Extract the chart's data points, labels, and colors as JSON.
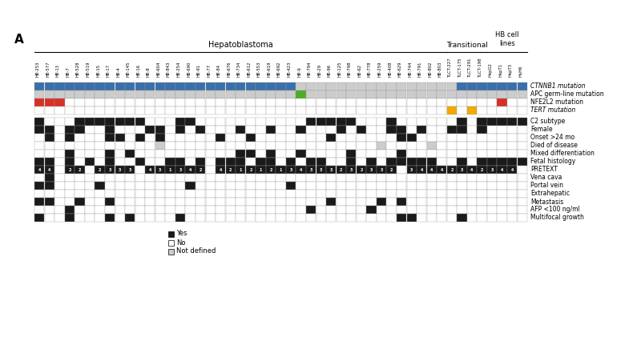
{
  "samples": [
    "HB-253",
    "HB-577",
    "HB-13",
    "HB-7",
    "HB-528",
    "HB-519",
    "HB-15",
    "HB-17",
    "HB-4",
    "HB-145",
    "HB-16",
    "HB-8",
    "HB-604",
    "HB-843",
    "HB-254",
    "HB-690",
    "HB-91",
    "HB-77",
    "HB-84",
    "HB-676",
    "HB-734",
    "HB-612",
    "HB-553",
    "HB-619",
    "HB-692",
    "HB-423",
    "HB-9",
    "HB-794",
    "HB-29",
    "HB-96",
    "HB-125",
    "HB-798",
    "HB-62",
    "HB-778",
    "HB-259",
    "HB-408",
    "HB-629",
    "HB-744",
    "HB-791",
    "HB-802",
    "HB-803",
    "TLCT-227",
    "TLCT-175",
    "TLCT-291",
    "TLCT-198",
    "HepG2",
    "HepT1",
    "HepT3",
    "HuH6"
  ],
  "n_hb": 41,
  "n_trans": 4,
  "n_hbcl": 4,
  "CTNNB1": [
    1,
    1,
    1,
    1,
    1,
    1,
    1,
    1,
    1,
    1,
    1,
    1,
    1,
    1,
    1,
    1,
    1,
    1,
    1,
    1,
    1,
    1,
    1,
    1,
    1,
    1,
    0,
    0,
    0,
    0,
    0,
    0,
    0,
    0,
    0,
    0,
    0,
    0,
    0,
    0,
    0,
    0,
    1,
    1,
    1,
    1,
    1,
    1,
    1
  ],
  "APC": [
    0,
    0,
    0,
    0,
    0,
    2,
    2,
    0,
    0,
    0,
    0,
    0,
    2,
    0,
    0,
    0,
    0,
    0,
    0,
    0,
    0,
    0,
    0,
    0,
    0,
    0,
    3,
    0,
    0,
    0,
    0,
    0,
    0,
    0,
    0,
    0,
    0,
    0,
    0,
    0,
    0,
    0,
    0,
    0,
    0,
    0,
    0,
    0,
    0
  ],
  "NFE2L2": [
    1,
    1,
    1,
    0,
    0,
    0,
    0,
    0,
    0,
    0,
    0,
    0,
    0,
    0,
    0,
    0,
    0,
    0,
    0,
    0,
    0,
    0,
    0,
    0,
    0,
    0,
    0,
    0,
    0,
    0,
    0,
    0,
    0,
    0,
    0,
    0,
    0,
    0,
    0,
    0,
    0,
    0,
    0,
    0,
    0,
    0,
    1,
    0,
    0
  ],
  "TERT": [
    0,
    0,
    0,
    0,
    0,
    0,
    0,
    0,
    0,
    0,
    0,
    0,
    0,
    0,
    0,
    0,
    0,
    0,
    0,
    0,
    0,
    0,
    0,
    0,
    0,
    0,
    0,
    0,
    0,
    0,
    0,
    0,
    0,
    0,
    0,
    0,
    0,
    0,
    0,
    0,
    0,
    1,
    0,
    1,
    0,
    0,
    0,
    0,
    0
  ],
  "C2": [
    1,
    0,
    0,
    0,
    1,
    1,
    1,
    1,
    1,
    1,
    1,
    0,
    0,
    0,
    1,
    1,
    0,
    0,
    0,
    0,
    0,
    0,
    0,
    0,
    0,
    0,
    0,
    1,
    1,
    1,
    1,
    1,
    0,
    0,
    0,
    1,
    0,
    0,
    0,
    0,
    0,
    0,
    1,
    0,
    1,
    1,
    1,
    1,
    1
  ],
  "Female": [
    1,
    1,
    0,
    1,
    1,
    0,
    0,
    1,
    0,
    0,
    0,
    1,
    1,
    0,
    1,
    0,
    1,
    0,
    0,
    0,
    1,
    0,
    0,
    1,
    0,
    0,
    1,
    0,
    0,
    0,
    1,
    0,
    1,
    0,
    0,
    1,
    1,
    0,
    1,
    0,
    0,
    1,
    1,
    0,
    1,
    0,
    0,
    0,
    0
  ],
  "Onset24": [
    0,
    1,
    0,
    1,
    0,
    0,
    0,
    1,
    1,
    0,
    1,
    0,
    1,
    0,
    0,
    0,
    0,
    0,
    1,
    0,
    0,
    1,
    0,
    0,
    0,
    0,
    0,
    0,
    0,
    1,
    0,
    0,
    0,
    0,
    0,
    0,
    1,
    1,
    0,
    0,
    0,
    0,
    0,
    0,
    0,
    0,
    0,
    0,
    0
  ],
  "Died": [
    0,
    0,
    0,
    0,
    0,
    0,
    0,
    0,
    0,
    0,
    0,
    0,
    9,
    0,
    0,
    0,
    0,
    0,
    0,
    0,
    0,
    0,
    0,
    0,
    0,
    0,
    0,
    0,
    0,
    0,
    0,
    0,
    0,
    0,
    9,
    0,
    0,
    0,
    0,
    9,
    0,
    0,
    0,
    0,
    0,
    0,
    0,
    0,
    0
  ],
  "MixDiff": [
    0,
    0,
    0,
    1,
    0,
    0,
    0,
    1,
    0,
    1,
    0,
    0,
    0,
    0,
    0,
    0,
    0,
    0,
    0,
    0,
    1,
    1,
    0,
    1,
    0,
    0,
    1,
    0,
    0,
    0,
    0,
    1,
    0,
    0,
    0,
    0,
    1,
    0,
    0,
    0,
    0,
    0,
    0,
    0,
    0,
    0,
    0,
    0,
    0
  ],
  "FetalH": [
    1,
    1,
    0,
    1,
    0,
    1,
    0,
    1,
    0,
    0,
    1,
    0,
    0,
    1,
    1,
    0,
    1,
    0,
    1,
    1,
    1,
    0,
    1,
    1,
    0,
    1,
    0,
    1,
    1,
    0,
    0,
    1,
    0,
    1,
    0,
    1,
    1,
    1,
    1,
    1,
    0,
    0,
    1,
    0,
    1,
    1,
    1,
    1,
    1
  ],
  "PRETEXT": [
    4,
    4,
    0,
    2,
    2,
    0,
    2,
    3,
    3,
    3,
    0,
    4,
    3,
    1,
    3,
    4,
    2,
    0,
    4,
    2,
    1,
    2,
    1,
    2,
    1,
    3,
    4,
    3,
    3,
    3,
    2,
    3,
    2,
    3,
    3,
    2,
    0,
    3,
    4,
    4,
    4,
    2,
    3,
    4,
    2,
    3,
    4,
    4,
    0
  ],
  "VenaCava": [
    0,
    1,
    0,
    0,
    0,
    0,
    0,
    0,
    0,
    0,
    0,
    0,
    0,
    0,
    0,
    0,
    0,
    0,
    0,
    0,
    0,
    0,
    0,
    0,
    0,
    0,
    0,
    0,
    0,
    0,
    0,
    0,
    0,
    0,
    0,
    0,
    0,
    0,
    0,
    0,
    0,
    0,
    0,
    0,
    0,
    0,
    0,
    0,
    0
  ],
  "Portal": [
    1,
    1,
    0,
    0,
    0,
    0,
    1,
    0,
    0,
    0,
    0,
    0,
    0,
    0,
    0,
    1,
    0,
    0,
    0,
    0,
    0,
    0,
    0,
    0,
    0,
    1,
    0,
    0,
    0,
    0,
    0,
    0,
    0,
    0,
    0,
    0,
    0,
    0,
    0,
    0,
    0,
    0,
    0,
    0,
    0,
    0,
    0,
    0,
    0
  ],
  "Extrahep": [
    0,
    0,
    0,
    0,
    0,
    0,
    0,
    0,
    0,
    0,
    0,
    0,
    0,
    0,
    0,
    0,
    0,
    0,
    0,
    0,
    0,
    0,
    0,
    0,
    0,
    0,
    0,
    0,
    0,
    0,
    0,
    0,
    0,
    0,
    0,
    0,
    0,
    0,
    0,
    0,
    0,
    0,
    0,
    0,
    0,
    0,
    0,
    0,
    0
  ],
  "Metastas": [
    1,
    1,
    0,
    0,
    1,
    0,
    0,
    1,
    0,
    0,
    0,
    0,
    0,
    0,
    0,
    0,
    0,
    0,
    0,
    0,
    0,
    0,
    0,
    0,
    0,
    0,
    0,
    0,
    0,
    1,
    0,
    0,
    0,
    0,
    1,
    0,
    1,
    0,
    0,
    0,
    0,
    0,
    0,
    0,
    0,
    0,
    0,
    0,
    0
  ],
  "AFP100": [
    0,
    0,
    0,
    1,
    0,
    0,
    0,
    0,
    0,
    0,
    0,
    0,
    0,
    0,
    0,
    0,
    0,
    0,
    0,
    0,
    0,
    0,
    0,
    0,
    0,
    0,
    0,
    1,
    0,
    0,
    0,
    0,
    0,
    1,
    0,
    0,
    0,
    0,
    0,
    0,
    0,
    0,
    0,
    0,
    0,
    0,
    0,
    0,
    0
  ],
  "Multifoc": [
    1,
    0,
    0,
    1,
    0,
    0,
    0,
    1,
    0,
    1,
    0,
    0,
    0,
    0,
    1,
    0,
    0,
    0,
    0,
    0,
    0,
    0,
    0,
    0,
    0,
    0,
    0,
    0,
    0,
    0,
    0,
    0,
    0,
    0,
    0,
    0,
    1,
    1,
    0,
    0,
    0,
    0,
    1,
    0,
    0,
    0,
    0,
    0,
    0
  ],
  "colors": {
    "blue": "#3a6faa",
    "red": "#d73027",
    "green": "#4dac26",
    "yellow": "#f4a800",
    "gray_nd": "#cccccc",
    "white": "#ffffff",
    "black": "#1a1a1a"
  },
  "mut_labels": [
    "CTNNB1 mutation",
    "APC germ-line mutation",
    "NFE2L2 mutation",
    "TERT mutation"
  ],
  "clin_labels": [
    "C2 subtype",
    "Female",
    "Onset >24 mo",
    "Died of disease",
    "Mixed differentiation",
    "Fetal histology",
    "PRETEXT",
    "Vena cava",
    "Portal vein",
    "Extrahepatic",
    "Metastasis",
    "AFP <100 ng/ml",
    "Multifocal growth"
  ],
  "group_labels": [
    "Hepatoblastoma",
    "Transitional",
    "HB cell\nlines"
  ]
}
